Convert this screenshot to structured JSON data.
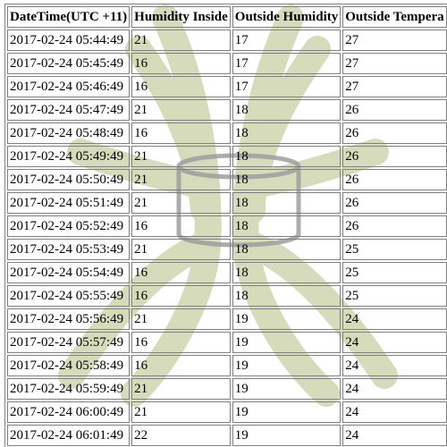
{
  "table": {
    "headers": [
      "DateTime(UTC +11)",
      "Humidity Inside",
      "Outside Humidity",
      "Outside Tempera"
    ],
    "rows": [
      [
        "2017-02-24 05:44:49",
        "21",
        "17",
        "27"
      ],
      [
        "2017-02-24 05:45:49",
        "16",
        "17",
        "27"
      ],
      [
        "2017-02-24 05:46:49",
        "16",
        "17",
        "27"
      ],
      [
        "2017-02-24 05:47:49",
        "21",
        "18",
        "26"
      ],
      [
        "2017-02-24 05:48:49",
        "16",
        "18",
        "26"
      ],
      [
        "2017-02-24 05:49:49",
        "21",
        "18",
        "26"
      ],
      [
        "2017-02-24 05:50:49",
        "21",
        "18",
        "26"
      ],
      [
        "2017-02-24 05:51:49",
        "21",
        "18",
        "26"
      ],
      [
        "2017-02-24 05:52:49",
        "16",
        "18",
        "26"
      ],
      [
        "2017-02-24 05:53:49",
        "21",
        "18",
        "25"
      ],
      [
        "2017-02-24 05:54:49",
        "16",
        "18",
        "25"
      ],
      [
        "2017-02-24 05:55:49",
        "16",
        "18",
        "25"
      ],
      [
        "2017-02-24 05:56:49",
        "21",
        "19",
        "24"
      ],
      [
        "2017-02-24 05:57:49",
        "16",
        "19",
        "24"
      ],
      [
        "2017-02-24 05:58:49",
        "16",
        "19",
        "24"
      ],
      [
        "2017-02-24 05:59:49",
        "21",
        "19",
        "24"
      ],
      [
        "2017-02-24 06:00:49",
        "21",
        "19",
        "24"
      ],
      [
        "2017-02-24 06:01:49",
        "22",
        "19",
        "24"
      ]
    ]
  },
  "watermark": {
    "icon": "database-icon",
    "arc_color": "#c9cfa6",
    "cylinder_color": "#9e9e9e"
  }
}
